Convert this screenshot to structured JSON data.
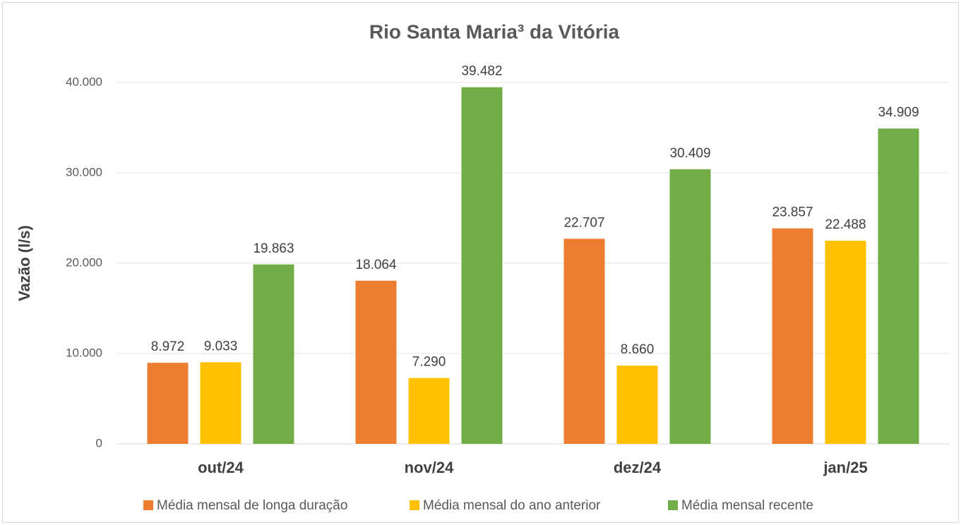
{
  "chart_data": {
    "type": "bar",
    "title": "Rio Santa Maria³ da Vitória",
    "y_label": "Vazão (l/s)",
    "categories": [
      "out/24",
      "nov/24",
      "dez/24",
      "jan/25"
    ],
    "series": [
      {
        "name": "Média mensal de longa duração",
        "color": "#ed7d31",
        "values": [
          8972,
          18064,
          22707,
          23857
        ],
        "value_labels": [
          "8.972",
          "18.064",
          "22.707",
          "23.857"
        ]
      },
      {
        "name": "Média mensal do ano anterior",
        "color": "#ffc000",
        "values": [
          9033,
          7290,
          8660,
          22488
        ],
        "value_labels": [
          "9.033",
          "7.290",
          "8.660",
          "22.488"
        ]
      },
      {
        "name": "Média mensal recente",
        "color": "#70ad47",
        "values": [
          19863,
          39482,
          30409,
          34909
        ],
        "value_labels": [
          "19.863",
          "39.482",
          "30.409",
          "34.909"
        ]
      }
    ],
    "ylim": [
      0,
      40000
    ],
    "yticks": [
      0,
      {
        "value": 10000,
        "label": "10.000"
      },
      {
        "value": 20000,
        "label": "20.000"
      },
      {
        "value": 30000,
        "label": "30.000"
      },
      {
        "value": 40000,
        "label": "40.000"
      }
    ],
    "grid": true,
    "legend": "bottom"
  }
}
